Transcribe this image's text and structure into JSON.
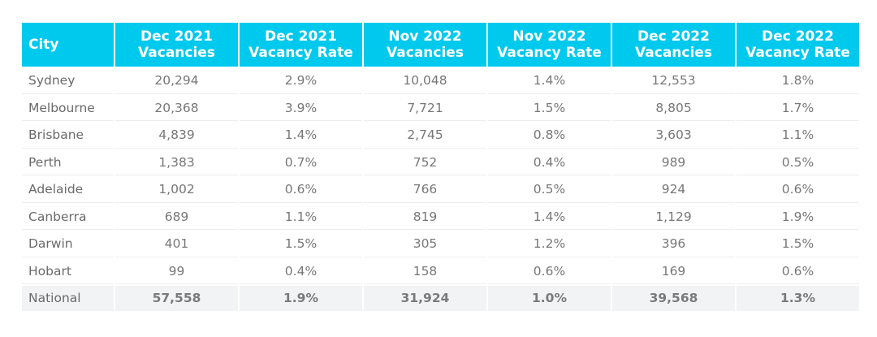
{
  "chart_data": {
    "type": "table",
    "columns": [
      [
        "City"
      ],
      [
        "Dec 2021",
        "Vacancies"
      ],
      [
        "Dec 2021",
        "Vacancy Rate"
      ],
      [
        "Nov 2022",
        "Vacancies"
      ],
      [
        "Nov 2022",
        "Vacancy Rate"
      ],
      [
        "Dec 2022",
        "Vacancies"
      ],
      [
        "Dec 2022",
        "Vacancy Rate"
      ]
    ],
    "rows": [
      [
        "Sydney",
        "20,294",
        "2.9%",
        "10,048",
        "1.4%",
        "12,553",
        "1.8%"
      ],
      [
        "Melbourne",
        "20,368",
        "3.9%",
        "7,721",
        "1.5%",
        "8,805",
        "1.7%"
      ],
      [
        "Brisbane",
        "4,839",
        "1.4%",
        "2,745",
        "0.8%",
        "3,603",
        "1.1%"
      ],
      [
        "Perth",
        "1,383",
        "0.7%",
        "752",
        "0.4%",
        "989",
        "0.5%"
      ],
      [
        "Adelaide",
        "1,002",
        "0.6%",
        "766",
        "0.5%",
        "924",
        "0.6%"
      ],
      [
        "Canberra",
        "689",
        "1.1%",
        "819",
        "1.4%",
        "1,129",
        "1.9%"
      ],
      [
        "Darwin",
        "401",
        "1.5%",
        "305",
        "1.2%",
        "396",
        "1.5%"
      ],
      [
        "Hobart",
        "99",
        "0.4%",
        "158",
        "0.6%",
        "169",
        "0.6%"
      ]
    ],
    "total_row": [
      "National",
      "57,558",
      "1.9%",
      "31,924",
      "1.0%",
      "39,568",
      "1.3%"
    ],
    "colors": {
      "header_bg": "#00c9ee",
      "header_text": "#ffffff",
      "body_text": "#777777",
      "total_row_bg": "#f2f3f5"
    }
  }
}
